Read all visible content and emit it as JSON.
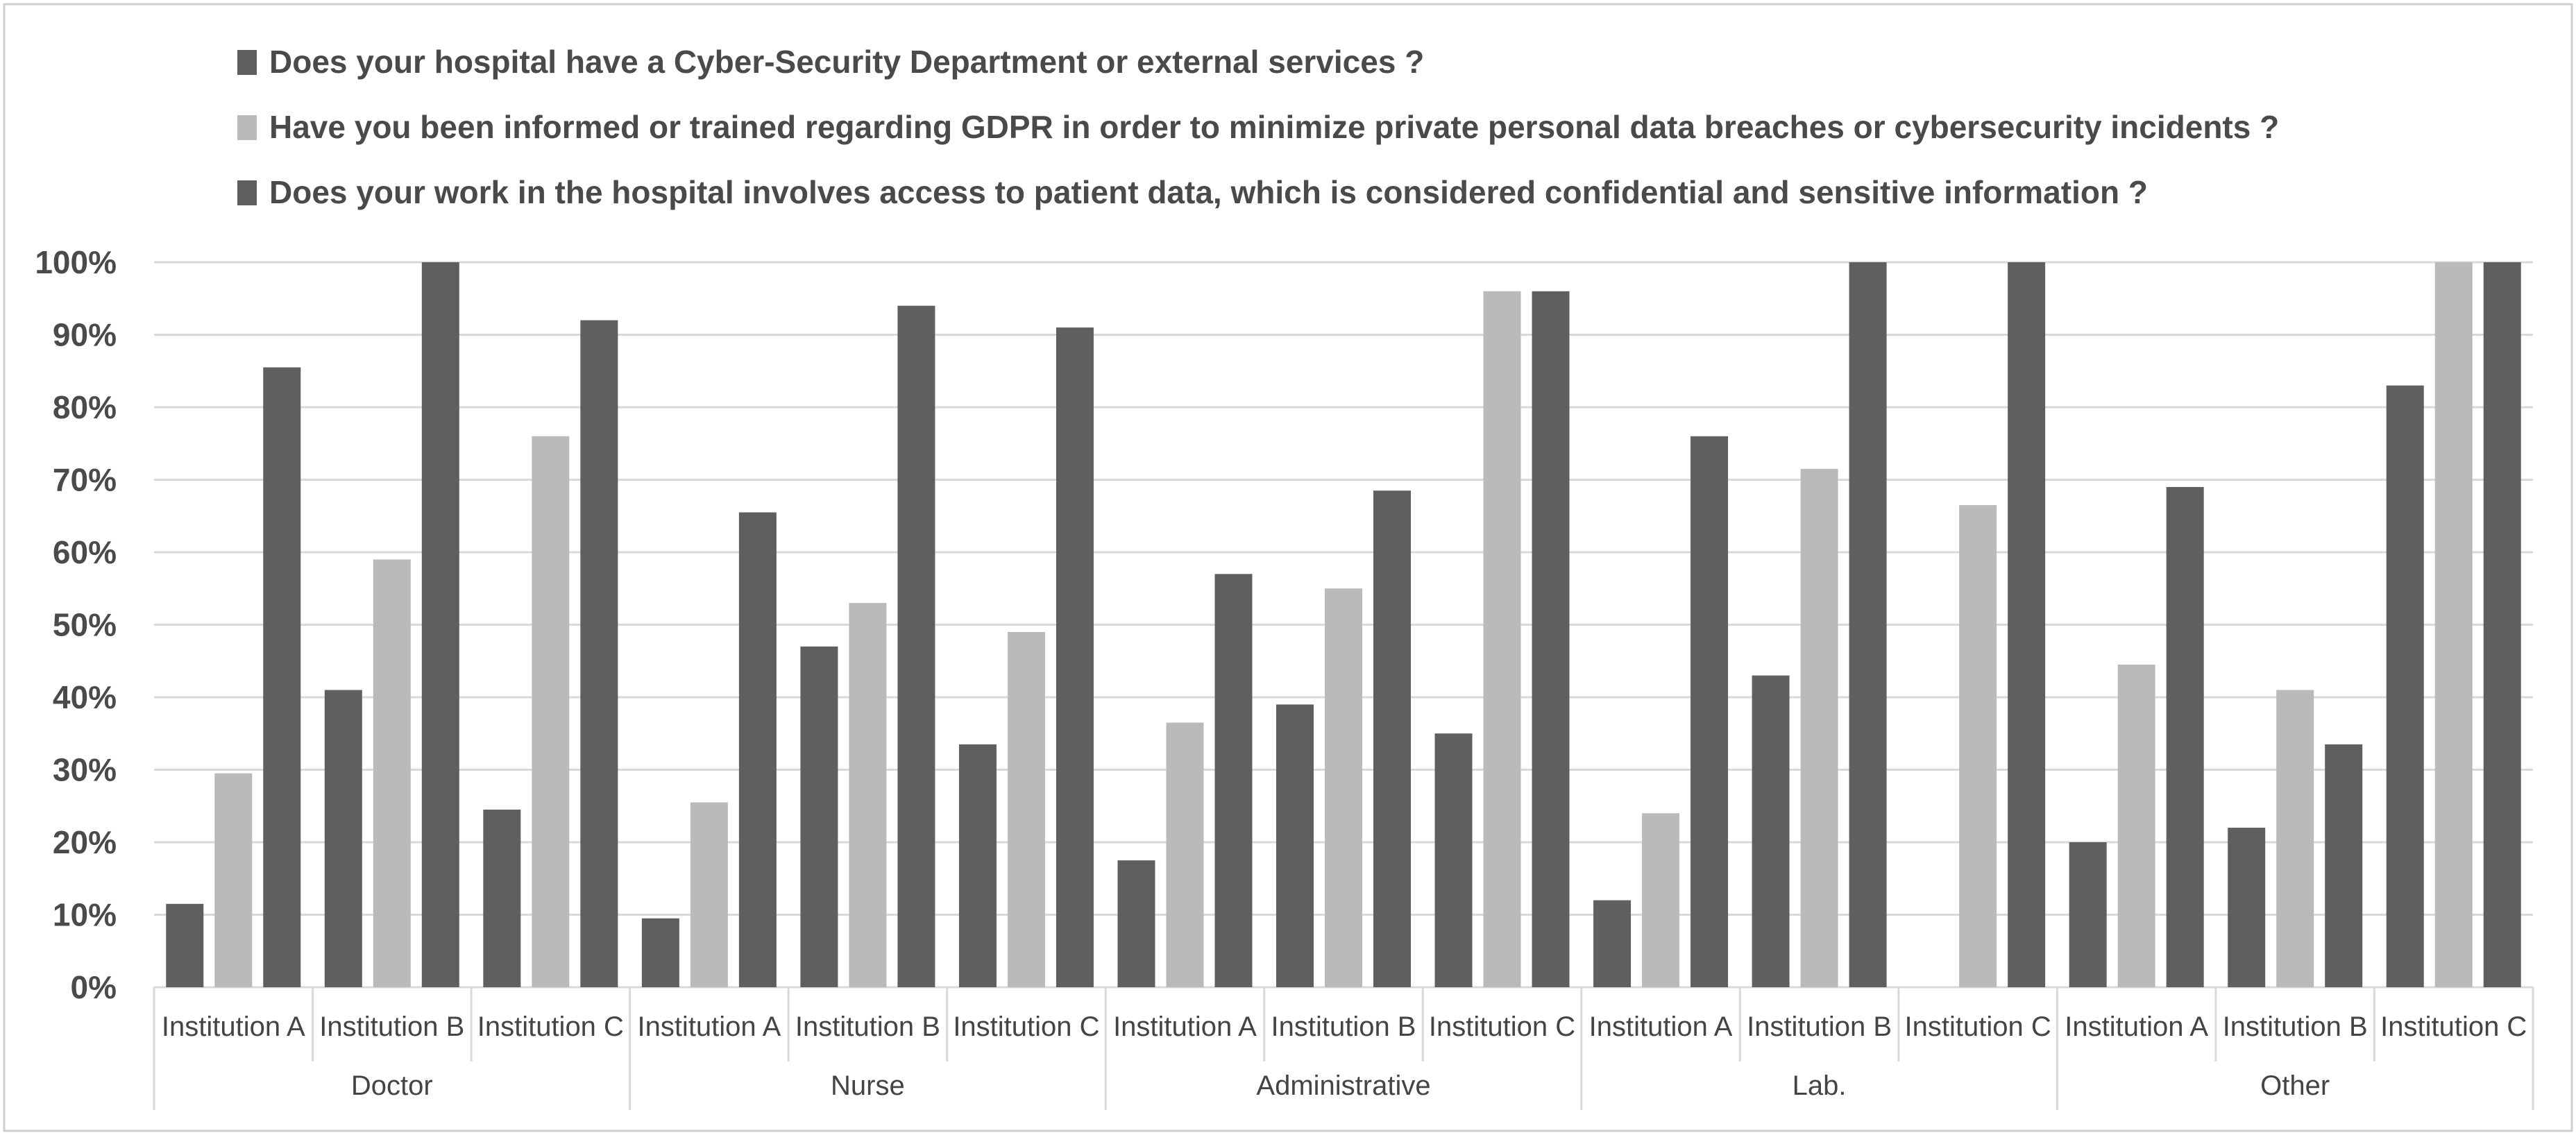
{
  "chart_data": {
    "type": "bar",
    "title": "",
    "xlabel": "",
    "ylabel": "",
    "ylim": [
      0,
      100
    ],
    "y_ticks": [
      0,
      10,
      20,
      30,
      40,
      50,
      60,
      70,
      80,
      90,
      100
    ],
    "y_tick_labels": [
      "0%",
      "10%",
      "20%",
      "30%",
      "40%",
      "50%",
      "60%",
      "70%",
      "80%",
      "90%",
      "100%"
    ],
    "grid": true,
    "legend_position": "top-left",
    "groups": [
      "Doctor",
      "Nurse",
      "Administrative",
      "Lab.",
      "Other"
    ],
    "subcategories": [
      "Institution A",
      "Institution B",
      "Institution C"
    ],
    "categories": [
      "Doctor - Institution A",
      "Doctor - Institution B",
      "Doctor - Institution C",
      "Nurse - Institution A",
      "Nurse - Institution B",
      "Nurse - Institution C",
      "Administrative - Institution A",
      "Administrative - Institution B",
      "Administrative - Institution C",
      "Lab. - Institution A",
      "Lab. - Institution B",
      "Lab. - Institution C",
      "Other - Institution A",
      "Other - Institution B",
      "Other - Institution C"
    ],
    "series": [
      {
        "name": "Does your hospital have a Cyber-Security Department or external services ?",
        "color": "#5f5f5f",
        "values": [
          11.5,
          41,
          24.5,
          9.5,
          47,
          33.5,
          17.5,
          39,
          35,
          12,
          43,
          0,
          20,
          22,
          83
        ]
      },
      {
        "name": "Have you been informed or trained regarding GDPR in order to minimize private personal data breaches or cybersecurity incidents ?",
        "color": "#bababa",
        "values": [
          29.5,
          59,
          76,
          25.5,
          53,
          49,
          36.5,
          55,
          96,
          24,
          71.5,
          66.5,
          44.5,
          41,
          100
        ]
      },
      {
        "name": "Does your work in the hospital involves access to patient data, which is considered confidential and sensitive information ?",
        "color": "#5f5f5f",
        "values": [
          85.5,
          100,
          92,
          65.5,
          94,
          91,
          57,
          68.5,
          96,
          76,
          100,
          100,
          69,
          33.5,
          100
        ]
      }
    ]
  }
}
